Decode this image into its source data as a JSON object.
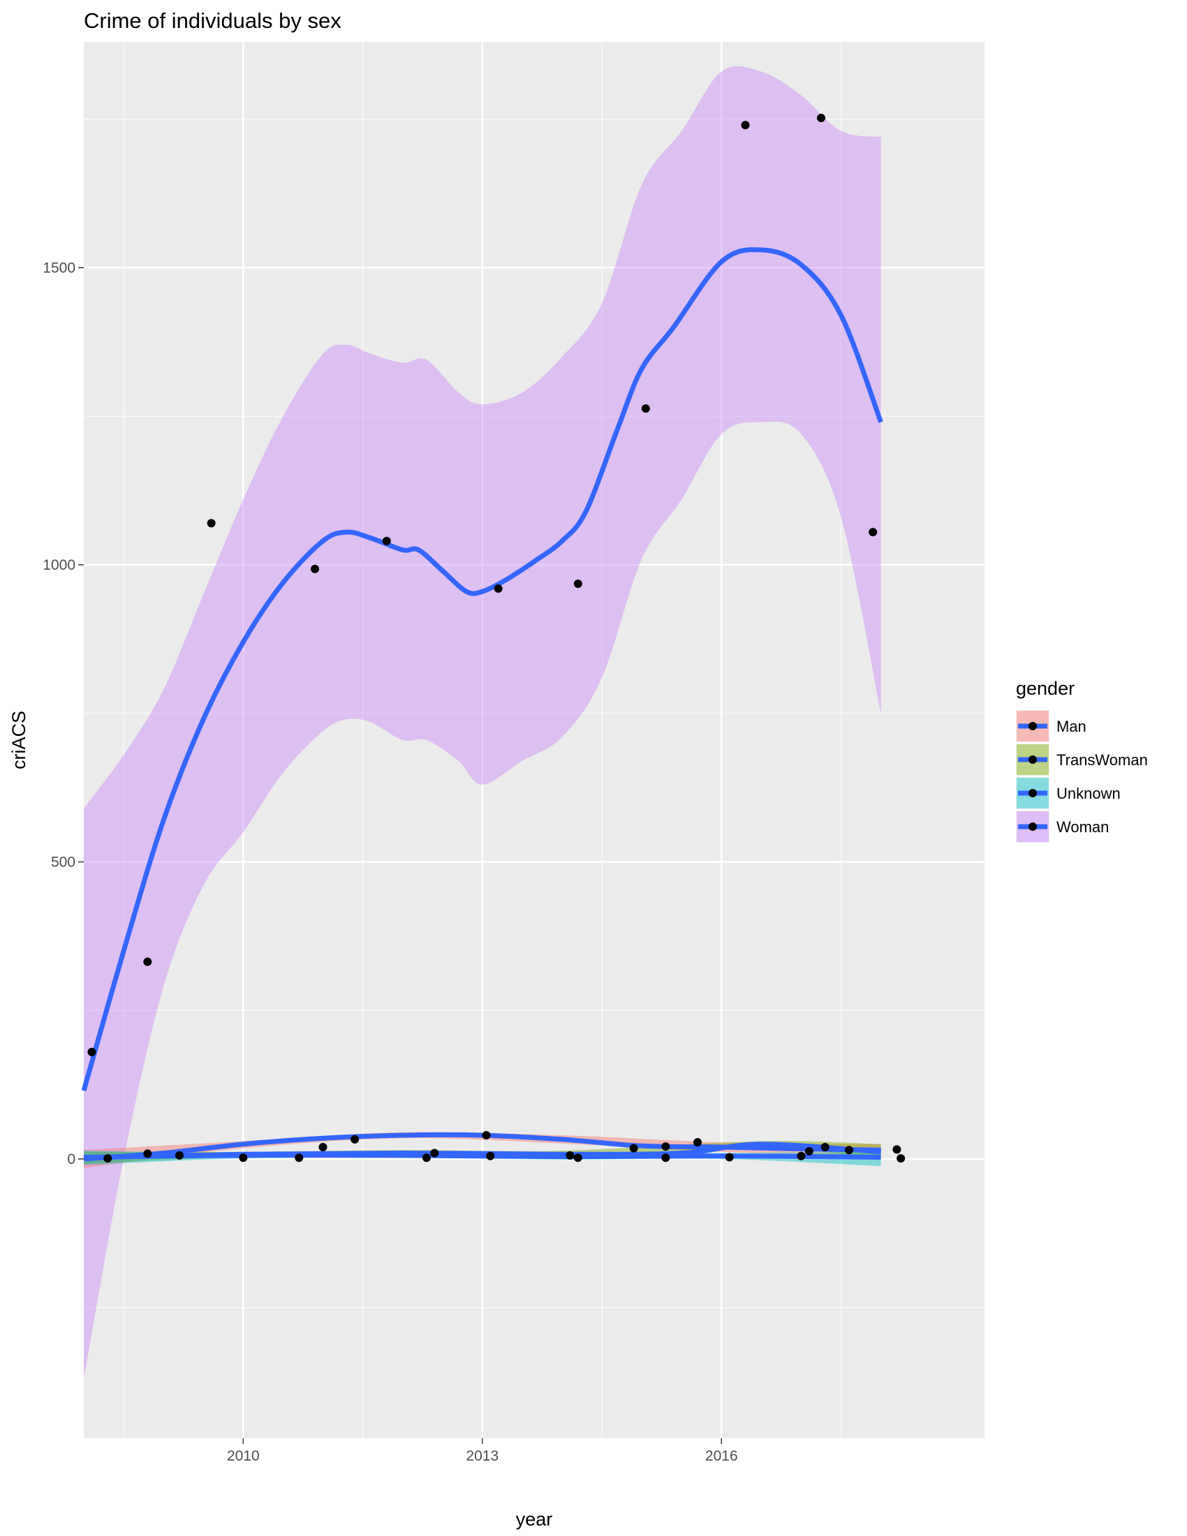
{
  "chart_data": {
    "type": "scatter",
    "title": "Crime of individuals by sex",
    "xlabel": "year",
    "ylabel": "criACS",
    "xlim": [
      2008.0,
      2019.3
    ],
    "ylim": [
      -470,
      1880
    ],
    "x_ticks": [
      2010,
      2013,
      2016
    ],
    "x_tick_labels": [
      "2010",
      "2013",
      "2016"
    ],
    "y_ticks": [
      0,
      500,
      1000,
      1500
    ],
    "y_tick_labels": [
      "0",
      "500",
      "1000",
      "1500"
    ],
    "grid": true,
    "legend": {
      "title": "gender",
      "position": "right",
      "entries": [
        "Man",
        "TransWoman",
        "Unknown",
        "Woman"
      ]
    },
    "colors": {
      "panel": "#ebebeb",
      "grid_major": "#ffffff",
      "smooth_line": "#3366ff",
      "point": "#000000",
      "ribbon_man": "#f8766d",
      "ribbon_transwoman": "#7cae00",
      "ribbon_unknown": "#00bfc4",
      "ribbon_woman": "#c77cff"
    },
    "series": [
      {
        "name": "Woman",
        "points": [
          [
            2008.1,
            180
          ],
          [
            2008.8,
            332
          ],
          [
            2009.6,
            1070
          ],
          [
            2010.9,
            993
          ],
          [
            2011.8,
            1040
          ],
          [
            2013.2,
            960
          ],
          [
            2014.2,
            968
          ],
          [
            2015.05,
            1263
          ],
          [
            2016.3,
            1740
          ],
          [
            2017.25,
            1752
          ],
          [
            2017.9,
            1055
          ]
        ],
        "smooth": [
          [
            2008.0,
            115
          ],
          [
            2008.5,
            350
          ],
          [
            2009.0,
            570
          ],
          [
            2009.5,
            740
          ],
          [
            2010.0,
            870
          ],
          [
            2010.5,
            970
          ],
          [
            2011.0,
            1040
          ],
          [
            2011.3,
            1055
          ],
          [
            2011.6,
            1045
          ],
          [
            2012.0,
            1025
          ],
          [
            2012.2,
            1025
          ],
          [
            2012.5,
            990
          ],
          [
            2012.8,
            955
          ],
          [
            2013.0,
            955
          ],
          [
            2013.3,
            975
          ],
          [
            2013.7,
            1010
          ],
          [
            2014.0,
            1040
          ],
          [
            2014.3,
            1090
          ],
          [
            2014.7,
            1230
          ],
          [
            2015.0,
            1330
          ],
          [
            2015.4,
            1400
          ],
          [
            2016.0,
            1510
          ],
          [
            2016.5,
            1530
          ],
          [
            2017.0,
            1505
          ],
          [
            2017.5,
            1420
          ],
          [
            2018.0,
            1240
          ]
        ],
        "ribbon_upper": [
          [
            2008.0,
            590
          ],
          [
            2008.5,
            680
          ],
          [
            2009.0,
            790
          ],
          [
            2009.5,
            950
          ],
          [
            2010.0,
            1110
          ],
          [
            2010.5,
            1250
          ],
          [
            2011.0,
            1355
          ],
          [
            2011.3,
            1370
          ],
          [
            2011.6,
            1355
          ],
          [
            2012.0,
            1340
          ],
          [
            2012.3,
            1345
          ],
          [
            2012.7,
            1290
          ],
          [
            2013.0,
            1270
          ],
          [
            2013.5,
            1290
          ],
          [
            2014.0,
            1350
          ],
          [
            2014.5,
            1440
          ],
          [
            2015.0,
            1640
          ],
          [
            2015.5,
            1730
          ],
          [
            2016.0,
            1830
          ],
          [
            2016.5,
            1830
          ],
          [
            2017.0,
            1790
          ],
          [
            2017.5,
            1730
          ],
          [
            2018.0,
            1720
          ]
        ],
        "ribbon_lower": [
          [
            2008.0,
            -370
          ],
          [
            2008.5,
            0
          ],
          [
            2009.0,
            290
          ],
          [
            2009.5,
            460
          ],
          [
            2010.0,
            550
          ],
          [
            2010.5,
            650
          ],
          [
            2011.0,
            720
          ],
          [
            2011.3,
            740
          ],
          [
            2011.6,
            735
          ],
          [
            2012.0,
            705
          ],
          [
            2012.3,
            705
          ],
          [
            2012.7,
            670
          ],
          [
            2013.0,
            630
          ],
          [
            2013.5,
            670
          ],
          [
            2014.0,
            710
          ],
          [
            2014.5,
            810
          ],
          [
            2015.0,
            1010
          ],
          [
            2015.5,
            1110
          ],
          [
            2016.0,
            1220
          ],
          [
            2016.5,
            1240
          ],
          [
            2017.0,
            1220
          ],
          [
            2017.5,
            1080
          ],
          [
            2018.0,
            750
          ]
        ]
      },
      {
        "name": "Man",
        "points": [
          [
            2008.3,
            1
          ],
          [
            2008.8,
            9
          ],
          [
            2009.2,
            6
          ],
          [
            2010.0,
            2
          ],
          [
            2010.7,
            2
          ],
          [
            2011.0,
            20
          ],
          [
            2011.4,
            33
          ],
          [
            2012.3,
            2
          ],
          [
            2012.4,
            10
          ],
          [
            2013.05,
            40
          ],
          [
            2013.1,
            5
          ],
          [
            2014.1,
            6
          ],
          [
            2014.2,
            2
          ],
          [
            2014.9,
            18
          ],
          [
            2015.3,
            2
          ],
          [
            2015.3,
            21
          ],
          [
            2015.7,
            28
          ],
          [
            2016.1,
            3
          ],
          [
            2017.0,
            5
          ],
          [
            2017.1,
            13
          ],
          [
            2017.3,
            20
          ],
          [
            2017.6,
            15
          ],
          [
            2018.2,
            16
          ],
          [
            2018.25,
            1
          ]
        ],
        "smooth": [
          [
            2008.0,
            0
          ],
          [
            2009.0,
            10
          ],
          [
            2010.0,
            25
          ],
          [
            2011.0,
            35
          ],
          [
            2012.0,
            40
          ],
          [
            2013.0,
            40
          ],
          [
            2014.0,
            33
          ],
          [
            2015.0,
            22
          ],
          [
            2016.0,
            20
          ],
          [
            2017.0,
            17
          ],
          [
            2018.0,
            15
          ]
        ],
        "ribbon_upper": [
          [
            2008.0,
            15
          ],
          [
            2010.0,
            30
          ],
          [
            2012.0,
            45
          ],
          [
            2014.0,
            40
          ],
          [
            2016.0,
            28
          ],
          [
            2018.0,
            25
          ]
        ],
        "ribbon_lower": [
          [
            2008.0,
            -15
          ],
          [
            2010.0,
            18
          ],
          [
            2012.0,
            35
          ],
          [
            2014.0,
            26
          ],
          [
            2016.0,
            12
          ],
          [
            2018.0,
            5
          ]
        ]
      },
      {
        "name": "TransWoman",
        "smooth": [
          [
            2008.0,
            2
          ],
          [
            2010.0,
            8
          ],
          [
            2012.0,
            10
          ],
          [
            2014.0,
            8
          ],
          [
            2015.5,
            10
          ],
          [
            2016.5,
            25
          ],
          [
            2018.0,
            12
          ]
        ],
        "ribbon_upper": [
          [
            2008.0,
            12
          ],
          [
            2010.0,
            12
          ],
          [
            2012.0,
            15
          ],
          [
            2014.0,
            14
          ],
          [
            2016.5,
            30
          ],
          [
            2018.0,
            25
          ]
        ],
        "ribbon_lower": [
          [
            2008.0,
            -8
          ],
          [
            2010.0,
            3
          ],
          [
            2012.0,
            5
          ],
          [
            2014.0,
            2
          ],
          [
            2016.5,
            18
          ],
          [
            2018.0,
            0
          ]
        ]
      },
      {
        "name": "Unknown",
        "smooth": [
          [
            2008.0,
            3
          ],
          [
            2010.0,
            6
          ],
          [
            2012.0,
            6
          ],
          [
            2014.0,
            4
          ],
          [
            2016.0,
            5
          ],
          [
            2018.0,
            3
          ]
        ],
        "ribbon_upper": [
          [
            2008.0,
            14
          ],
          [
            2010.0,
            10
          ],
          [
            2012.0,
            10
          ],
          [
            2014.0,
            9
          ],
          [
            2016.0,
            10
          ],
          [
            2018.0,
            12
          ]
        ],
        "ribbon_lower": [
          [
            2008.0,
            -10
          ],
          [
            2010.0,
            1
          ],
          [
            2012.0,
            2
          ],
          [
            2014.0,
            -1
          ],
          [
            2016.0,
            0
          ],
          [
            2018.0,
            -12
          ]
        ]
      }
    ]
  }
}
